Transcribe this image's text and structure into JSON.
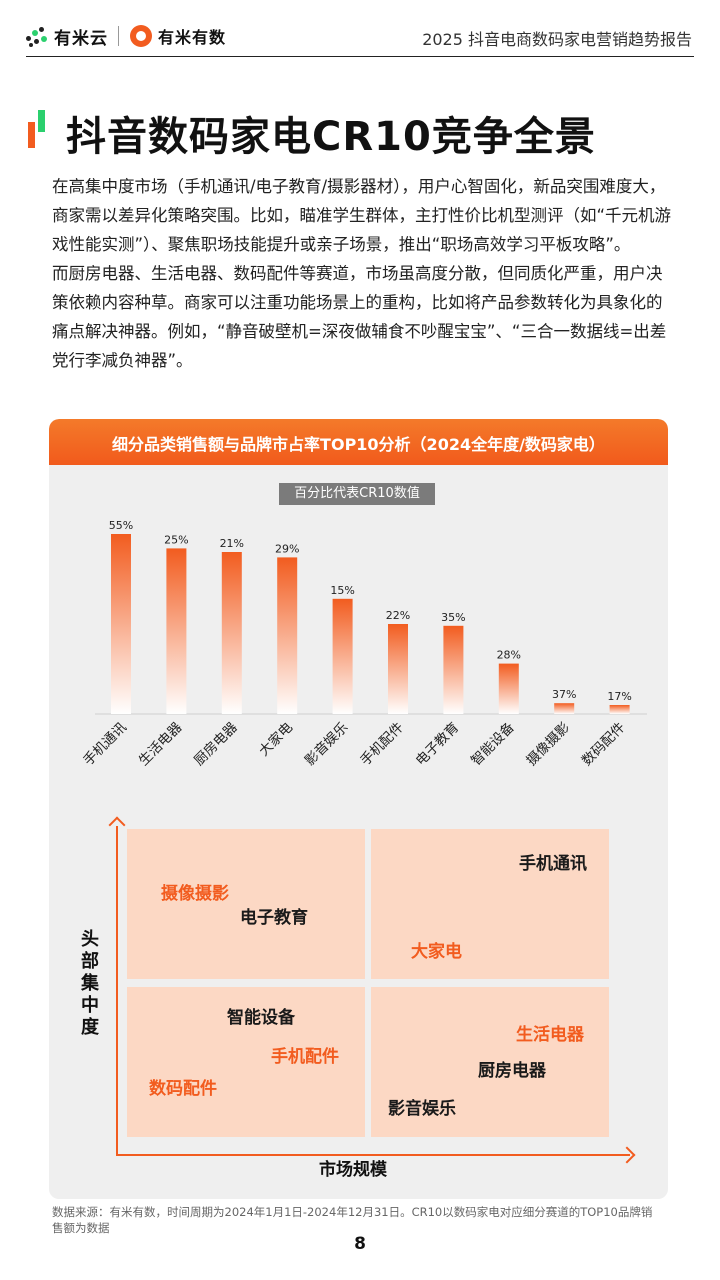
{
  "header": {
    "logo1_text": "有米云",
    "logo2_text": "有米有数",
    "report_title": "2025 抖音电商数码家电营销趋势报告"
  },
  "page_title": "抖音数码家电CR10竞争全景",
  "paragraphs": [
    "在高集中度市场（手机通讯/电子教育/摄影器材），用户心智固化，新品突围难度大，商家需以差异化策略突围。比如，瞄准学生群体，主打性价比机型测评（如“千元机游戏性能实测”）、聚焦职场技能提升或亲子场景，推出“职场高效学习平板攻略”。",
    "而厨房电器、生活电器、数码配件等赛道，市场虽高度分散，但同质化严重，用户决策依赖内容种草。商家可以注重功能场景上的重构，比如将产品参数转化为具象化的痛点解决神器。例如，“静音破壁机=深夜做辅食不吵醒宝宝”、“三合一数据线=出差党行李减负神器”。"
  ],
  "panel": {
    "title": "细分品类销售额与品牌市占率TOP10分析（2024全年度/数码家电）",
    "pct_note": "百分比代表CR10数值"
  },
  "chart_data": {
    "type": "bar",
    "categories": [
      "手机通讯",
      "生活电器",
      "厨房电器",
      "大家电",
      "影音娱乐",
      "手机配件",
      "电子教育",
      "智能设备",
      "摄像摄影",
      "数码配件"
    ],
    "values": [
      100,
      92,
      90,
      87,
      64,
      50,
      49,
      28,
      6,
      5
    ],
    "data_labels": [
      "55%",
      "25%",
      "21%",
      "29%",
      "15%",
      "22%",
      "35%",
      "28%",
      "37%",
      "17%"
    ],
    "xlabel": "",
    "ylabel": "",
    "bar_color_top": "#f25c1f",
    "bar_color_bottom": "#ffffff"
  },
  "matrix": {
    "y_axis_title": "头部集中度",
    "x_axis_title": "市场规模",
    "quadrants": {
      "top_left": [
        {
          "text": "摄像摄影",
          "color": "orange"
        },
        {
          "text": "电子教育",
          "color": "dark"
        }
      ],
      "top_right": [
        {
          "text": "手机通讯",
          "color": "dark"
        },
        {
          "text": "大家电",
          "color": "orange"
        }
      ],
      "bottom_left": [
        {
          "text": "智能设备",
          "color": "dark"
        },
        {
          "text": "手机配件",
          "color": "orange"
        },
        {
          "text": "数码配件",
          "color": "orange"
        }
      ],
      "bottom_right": [
        {
          "text": "生活电器",
          "color": "orange"
        },
        {
          "text": "厨房电器",
          "color": "dark"
        },
        {
          "text": "影音娱乐",
          "color": "dark"
        }
      ]
    }
  },
  "source": "数据来源：有米有数，时间周期为2024年1月1日-2024年12月31日。CR10以数码家电对应细分赛道的TOP10品牌销售额为数据",
  "page_number": "8"
}
